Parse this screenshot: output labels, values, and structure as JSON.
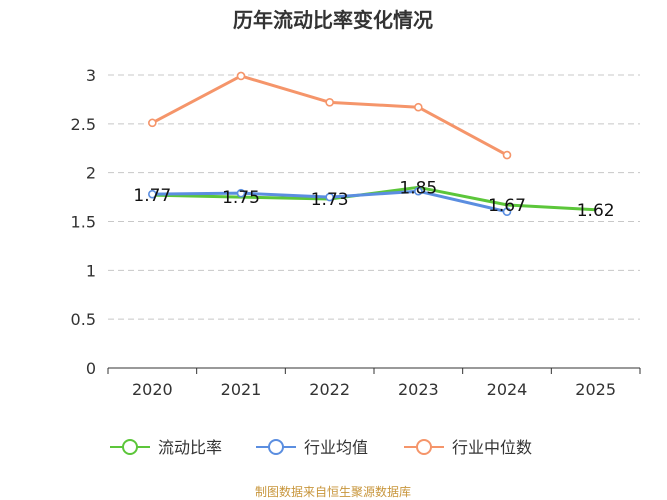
{
  "chart_data": {
    "type": "line",
    "title": "历年流动比率变化情况",
    "categories": [
      "2020",
      "2021",
      "2022",
      "2023",
      "2024",
      "2025"
    ],
    "ylim": [
      0,
      3
    ],
    "yticks": [
      "0",
      "0.5",
      "1",
      "1.5",
      "2",
      "2.5",
      "3"
    ],
    "grid": true,
    "legend_position": "bottom",
    "series": [
      {
        "name": "流动比率",
        "color": "#5cc63a",
        "values": [
          1.77,
          1.75,
          1.73,
          1.85,
          1.67,
          1.62
        ],
        "labels": [
          "1.77",
          "1.75",
          "1.73",
          "1.85",
          "1.67",
          "1.62"
        ]
      },
      {
        "name": "行业均值",
        "color": "#5b8ee0",
        "values": [
          1.78,
          1.79,
          1.75,
          1.81,
          1.6,
          null
        ]
      },
      {
        "name": "行业中位数",
        "color": "#f5956a",
        "values": [
          2.51,
          2.99,
          2.72,
          2.67,
          2.18,
          null
        ]
      }
    ]
  },
  "source": "制图数据来自恒生聚源数据库"
}
